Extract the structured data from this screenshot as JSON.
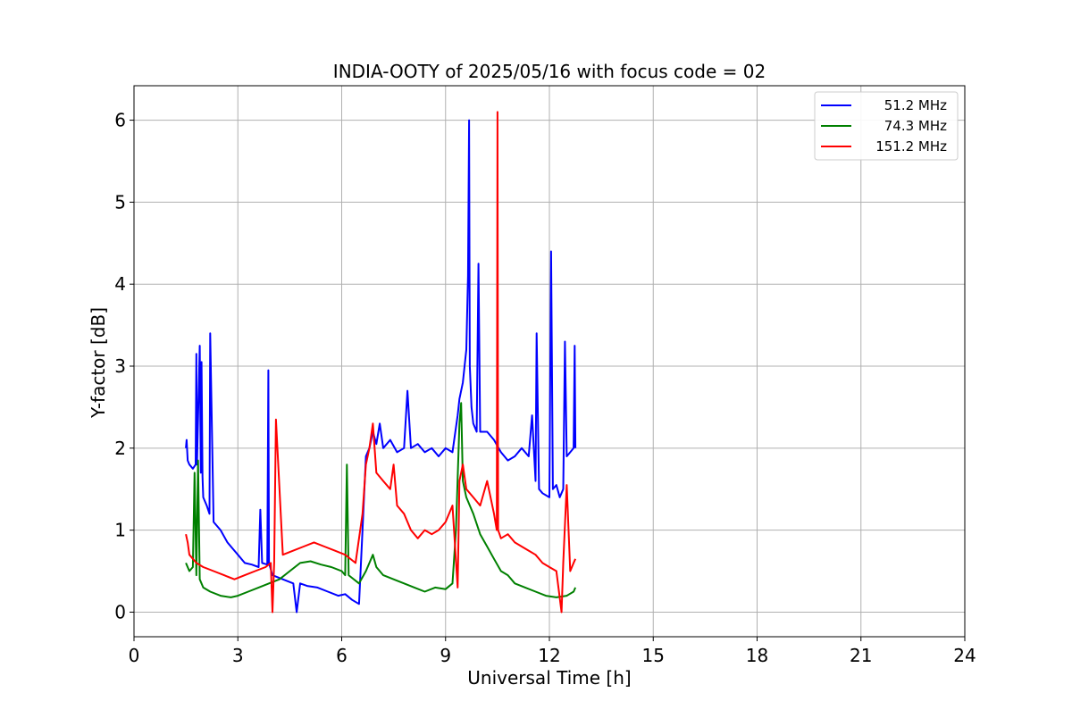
{
  "chart_data": {
    "type": "line",
    "title": "INDIA-OOTY of 2025/05/16 with focus code = 02",
    "xlabel": "Universal Time [h]",
    "ylabel": "Y-factor [dB]",
    "xlim": [
      0,
      24
    ],
    "ylim": [
      -0.3,
      6.42
    ],
    "xticks": [
      0,
      3,
      6,
      9,
      12,
      15,
      18,
      21,
      24
    ],
    "yticks": [
      0,
      1,
      2,
      3,
      4,
      5,
      6
    ],
    "grid": true,
    "legend_position": "top-right",
    "series": [
      {
        "name": "  51.2 MHz",
        "color": "#0000ff",
        "x": [
          1.5,
          1.52,
          1.55,
          1.6,
          1.7,
          1.78,
          1.8,
          1.82,
          1.9,
          1.93,
          1.95,
          1.98,
          2.0,
          2.1,
          2.18,
          2.2,
          2.3,
          2.5,
          2.7,
          2.9,
          3.0,
          3.2,
          3.4,
          3.6,
          3.65,
          3.7,
          3.85,
          3.88,
          3.9,
          4.0,
          4.3,
          4.6,
          4.7,
          4.8,
          5.0,
          5.3,
          5.6,
          5.9,
          6.1,
          6.3,
          6.5,
          6.6,
          6.7,
          6.8,
          6.9,
          7.0,
          7.1,
          7.2,
          7.4,
          7.6,
          7.8,
          7.9,
          8.0,
          8.2,
          8.4,
          8.6,
          8.8,
          9.0,
          9.2,
          9.35,
          9.4,
          9.5,
          9.6,
          9.65,
          9.68,
          9.7,
          9.75,
          9.8,
          9.9,
          9.95,
          10.0,
          10.2,
          10.4,
          10.6,
          10.8,
          11.0,
          11.2,
          11.4,
          11.5,
          11.6,
          11.63,
          11.7,
          11.8,
          12.0,
          12.05,
          12.1,
          12.2,
          12.3,
          12.4,
          12.45,
          12.5,
          12.6,
          12.7,
          12.73,
          12.75
        ],
        "values": [
          2.0,
          2.1,
          1.85,
          1.8,
          1.75,
          1.8,
          3.15,
          1.8,
          3.25,
          1.7,
          3.05,
          1.65,
          1.4,
          1.3,
          1.2,
          3.4,
          1.1,
          1.0,
          0.85,
          0.75,
          0.7,
          0.6,
          0.58,
          0.55,
          1.25,
          0.6,
          0.58,
          2.95,
          0.6,
          0.45,
          0.4,
          0.35,
          0.0,
          0.35,
          0.32,
          0.3,
          0.25,
          0.2,
          0.22,
          0.15,
          0.1,
          1.0,
          1.9,
          2.0,
          2.2,
          2.05,
          2.3,
          2.0,
          2.1,
          1.95,
          2.0,
          2.7,
          2.0,
          2.05,
          1.95,
          2.0,
          1.9,
          2.0,
          1.95,
          2.4,
          2.6,
          2.8,
          3.2,
          4.1,
          6.0,
          3.0,
          2.5,
          2.3,
          2.2,
          4.25,
          2.2,
          2.2,
          2.1,
          1.95,
          1.85,
          1.9,
          2.0,
          1.9,
          2.4,
          1.6,
          3.4,
          1.5,
          1.45,
          1.4,
          4.4,
          1.5,
          1.55,
          1.4,
          1.5,
          3.3,
          1.9,
          1.95,
          2.0,
          3.25,
          2.0
        ]
      },
      {
        "name": "  74.3 MHz",
        "color": "#008000",
        "x": [
          1.5,
          1.6,
          1.7,
          1.75,
          1.8,
          1.85,
          1.9,
          2.0,
          2.2,
          2.5,
          2.8,
          3.0,
          3.3,
          3.6,
          3.9,
          4.2,
          4.5,
          4.8,
          5.1,
          5.4,
          5.7,
          6.0,
          6.1,
          6.15,
          6.2,
          6.5,
          6.7,
          6.8,
          6.9,
          7.0,
          7.2,
          7.5,
          7.8,
          8.1,
          8.4,
          8.7,
          9.0,
          9.2,
          9.3,
          9.4,
          9.45,
          9.5,
          9.6,
          9.7,
          9.8,
          10.0,
          10.2,
          10.4,
          10.6,
          10.8,
          11.0,
          11.3,
          11.6,
          11.9,
          12.2,
          12.5,
          12.7,
          12.75
        ],
        "values": [
          0.6,
          0.5,
          0.55,
          1.7,
          0.45,
          1.85,
          0.4,
          0.3,
          0.25,
          0.2,
          0.18,
          0.2,
          0.25,
          0.3,
          0.35,
          0.4,
          0.5,
          0.6,
          0.62,
          0.58,
          0.55,
          0.5,
          0.45,
          1.8,
          0.45,
          0.35,
          0.5,
          0.6,
          0.7,
          0.55,
          0.45,
          0.4,
          0.35,
          0.3,
          0.25,
          0.3,
          0.28,
          0.35,
          1.0,
          2.3,
          2.55,
          1.6,
          1.4,
          1.3,
          1.2,
          0.95,
          0.8,
          0.65,
          0.5,
          0.45,
          0.35,
          0.3,
          0.25,
          0.2,
          0.18,
          0.2,
          0.25,
          0.3
        ]
      },
      {
        "name": "151.2 MHz",
        "color": "#ff0000",
        "x": [
          1.5,
          1.55,
          1.6,
          1.8,
          2.0,
          2.3,
          2.6,
          2.9,
          3.2,
          3.5,
          3.8,
          3.95,
          4.0,
          4.05,
          4.1,
          4.3,
          4.6,
          4.9,
          5.2,
          5.5,
          5.8,
          6.1,
          6.4,
          6.6,
          6.7,
          6.8,
          6.9,
          7.0,
          7.2,
          7.4,
          7.5,
          7.6,
          7.8,
          8.0,
          8.2,
          8.4,
          8.6,
          8.8,
          9.0,
          9.2,
          9.35,
          9.4,
          9.5,
          9.6,
          9.8,
          10.0,
          10.2,
          10.4,
          10.48,
          10.5,
          10.52,
          10.6,
          10.8,
          11.0,
          11.2,
          11.4,
          11.6,
          11.8,
          12.0,
          12.2,
          12.35,
          12.4,
          12.5,
          12.6,
          12.7,
          12.75
        ],
        "values": [
          0.95,
          0.85,
          0.7,
          0.6,
          0.55,
          0.5,
          0.45,
          0.4,
          0.45,
          0.5,
          0.55,
          0.6,
          0.0,
          0.6,
          2.35,
          0.7,
          0.75,
          0.8,
          0.85,
          0.8,
          0.75,
          0.7,
          0.6,
          1.2,
          1.8,
          2.0,
          2.3,
          1.7,
          1.6,
          1.5,
          1.8,
          1.3,
          1.2,
          1.0,
          0.9,
          1.0,
          0.95,
          1.0,
          1.1,
          1.3,
          0.3,
          1.6,
          1.8,
          1.5,
          1.4,
          1.3,
          1.6,
          1.2,
          1.0,
          6.1,
          1.0,
          0.9,
          0.95,
          0.85,
          0.8,
          0.75,
          0.7,
          0.6,
          0.55,
          0.5,
          0.0,
          0.6,
          1.55,
          0.5,
          0.6,
          0.65
        ]
      }
    ]
  }
}
